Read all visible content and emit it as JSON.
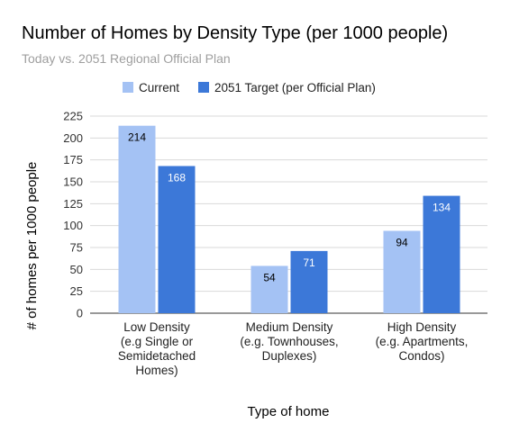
{
  "chart_data": {
    "type": "bar",
    "title": "Number of Homes by Density Type (per 1000 people)",
    "subtitle": "Today vs. 2051 Regional Official Plan",
    "xlabel": "Type of home",
    "ylabel": "# of homes per 1000 people",
    "categories": [
      [
        "Low Density",
        "(e.g Single or",
        "Semidetached",
        "Homes)"
      ],
      [
        "Medium Density",
        "(e.g. Townhouses,",
        "Duplexes)"
      ],
      [
        "High Density",
        "(e.g. Apartments,",
        "Condos)"
      ]
    ],
    "series": [
      {
        "name": "Current",
        "values": [
          214,
          54,
          94
        ],
        "color": "#a4c2f4",
        "label_color": "#000000"
      },
      {
        "name": "2051 Target (per Official Plan)",
        "values": [
          168,
          71,
          134
        ],
        "color": "#3c78d8",
        "label_color": "#ffffff"
      }
    ],
    "ylim": [
      0,
      225
    ],
    "yticks": [
      0,
      25,
      50,
      75,
      100,
      125,
      150,
      175,
      200,
      225
    ],
    "grid": true,
    "legend_position": "top"
  }
}
